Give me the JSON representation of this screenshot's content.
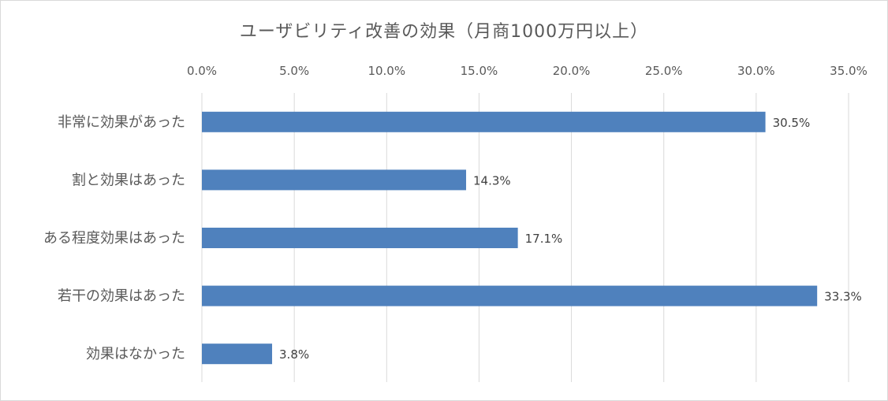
{
  "chart_data": {
    "type": "bar",
    "orientation": "horizontal",
    "title": "ユーザビリティ改善の効果（月商1000万円以上）",
    "categories": [
      "非常に効果があった",
      "割と効果はあった",
      "ある程度効果はあった",
      "若干の効果はあった",
      "効果はなかった"
    ],
    "values": [
      30.5,
      14.3,
      17.1,
      33.3,
      3.8
    ],
    "data_labels": [
      "30.5%",
      "14.3%",
      "17.1%",
      "33.3%",
      "3.8%"
    ],
    "xlim": [
      0,
      35
    ],
    "x_ticks": [
      0,
      5,
      10,
      15,
      20,
      25,
      30,
      35
    ],
    "x_tick_labels": [
      "0.0%",
      "5.0%",
      "10.0%",
      "15.0%",
      "20.0%",
      "25.0%",
      "30.0%",
      "35.0%"
    ],
    "axis_position": "top",
    "grid": true,
    "legend": "none",
    "colors": {
      "bar": "#4f81bd",
      "grid": "#d9d9d9",
      "text": "#595959"
    }
  }
}
